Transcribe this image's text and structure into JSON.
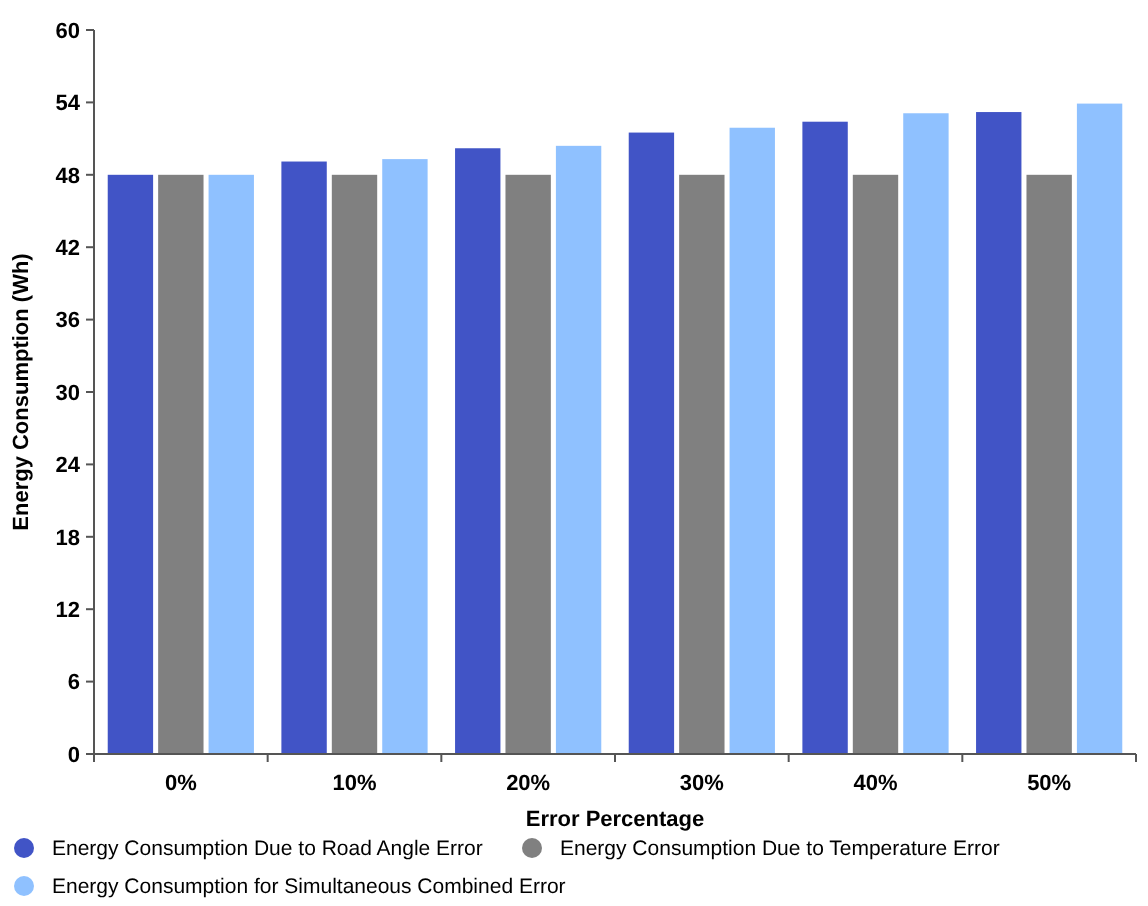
{
  "chart_data": {
    "type": "bar",
    "xlabel": "Error Percentage",
    "ylabel": "Energy Consumption (Wh)",
    "categories": [
      "0%",
      "10%",
      "20%",
      "30%",
      "40%",
      "50%"
    ],
    "series": [
      {
        "name": "Energy Consumption Due to Road Angle Error",
        "color": "#4154c6",
        "values": [
          48,
          49.1,
          50.2,
          51.5,
          52.4,
          53.2
        ]
      },
      {
        "name": "Energy Consumption Due to Temperature Error",
        "color": "#808080",
        "values": [
          48,
          48,
          48,
          48,
          48,
          48
        ]
      },
      {
        "name": "Energy Consumption for Simultaneous Combined Error",
        "color": "#8fc1ff",
        "values": [
          48,
          49.3,
          50.4,
          51.9,
          53.1,
          53.9
        ]
      }
    ],
    "ylim": [
      0,
      60
    ],
    "yticks": [
      0,
      6,
      12,
      18,
      24,
      30,
      36,
      42,
      48,
      54,
      60
    ],
    "legend": "bottom",
    "grid": false
  }
}
